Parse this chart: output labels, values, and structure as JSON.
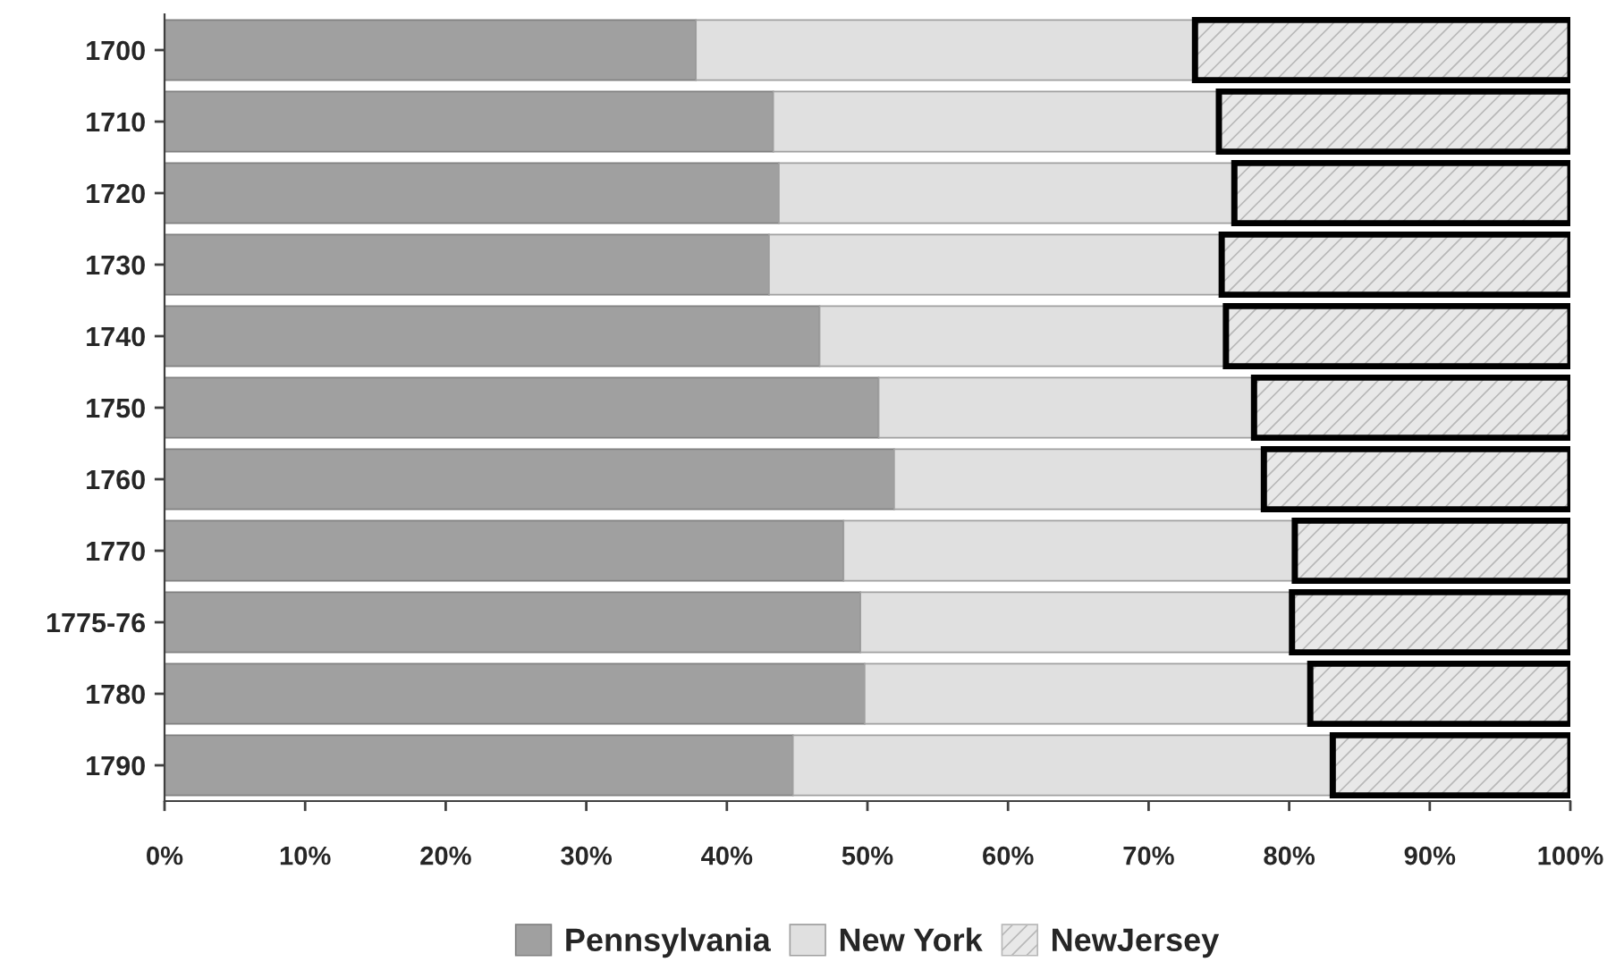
{
  "chart_data": {
    "type": "bar",
    "orientation": "horizontal",
    "stacked": true,
    "categories": [
      "1700",
      "1710",
      "1720",
      "1730",
      "1740",
      "1750",
      "1760",
      "1770",
      "1775-76",
      "1780",
      "1790"
    ],
    "series": [
      {
        "name": "Pennsylvania",
        "color": "#a0a0a0",
        "values": [
          37.8,
          43.3,
          43.7,
          43.0,
          46.6,
          50.8,
          51.9,
          48.3,
          49.5,
          49.8,
          44.7
        ]
      },
      {
        "name": "New York",
        "color": "#e0e0e0",
        "values": [
          35.5,
          31.7,
          32.4,
          32.2,
          28.9,
          26.7,
          26.3,
          32.1,
          30.7,
          31.7,
          38.4
        ]
      },
      {
        "name": "NewJersey",
        "color": "#e8e8e8",
        "values": [
          26.7,
          25.0,
          23.9,
          24.8,
          24.5,
          22.5,
          21.8,
          19.6,
          19.8,
          18.5,
          16.9
        ]
      }
    ],
    "xlim": [
      0,
      100
    ],
    "xticks": [
      {
        "value": 0,
        "label": "0%"
      },
      {
        "value": 10,
        "label": "10%"
      },
      {
        "value": 20,
        "label": "20%"
      },
      {
        "value": 30,
        "label": "30%"
      },
      {
        "value": 40,
        "label": "40%"
      },
      {
        "value": 50,
        "label": "50%"
      },
      {
        "value": 60,
        "label": "60%"
      },
      {
        "value": 70,
        "label": "70%"
      },
      {
        "value": 80,
        "label": "80%"
      },
      {
        "value": 90,
        "label": "90%"
      },
      {
        "value": 100,
        "label": "100%"
      }
    ],
    "grid": false,
    "legend": "bottom"
  }
}
